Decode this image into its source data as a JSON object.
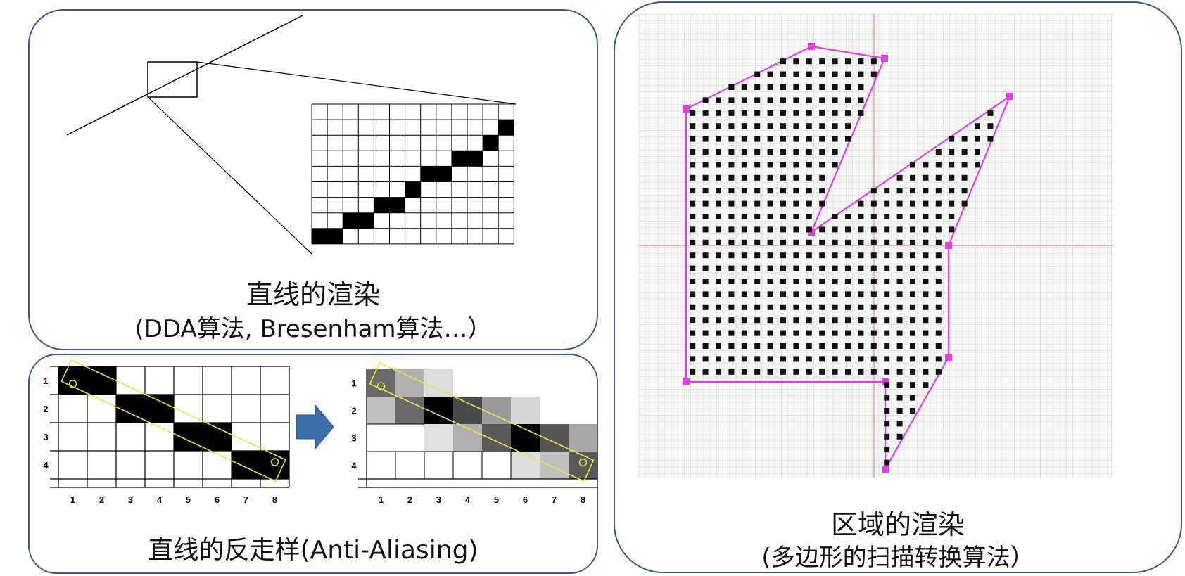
{
  "line_panel": {
    "title": "直线的渲染",
    "subtitle": "(DDA算法, Bresenham算法…）"
  },
  "aa_panel": {
    "title": "直线的反走样(Anti-Aliasing)",
    "x_ticks": [
      "1",
      "2",
      "3",
      "4",
      "5",
      "6",
      "7",
      "8"
    ],
    "y_ticks": [
      "1",
      "2",
      "3",
      "4"
    ]
  },
  "region_panel": {
    "title": "区域的渲染",
    "subtitle": "(多边形的扫描转换算法）"
  },
  "colors": {
    "panel_border": "#3a5a80",
    "arrow": "#3d6fa8",
    "polygon": "#e040e0",
    "highlight_line": "#e6e64a",
    "axis": "#e0a0a0"
  }
}
